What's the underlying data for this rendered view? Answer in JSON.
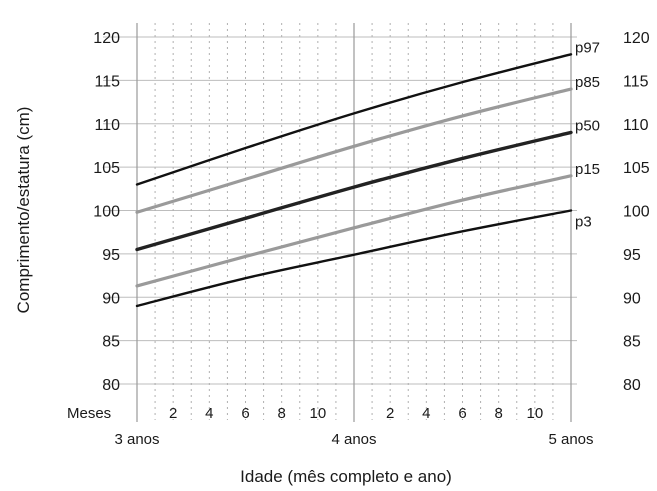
{
  "chart_data": {
    "type": "line",
    "title": "",
    "xlabel": "Idade (mês completo e ano)",
    "ylabel": "Comprimento/estatura (cm)",
    "ylim": [
      80,
      120
    ],
    "yticks": [
      80,
      85,
      90,
      95,
      100,
      105,
      110,
      115,
      120
    ],
    "xlim": [
      36,
      60
    ],
    "x_row_label": "Meses",
    "x_month_ticks": [
      {
        "month": 38,
        "label": "2"
      },
      {
        "month": 40,
        "label": "4"
      },
      {
        "month": 42,
        "label": "6"
      },
      {
        "month": 44,
        "label": "8"
      },
      {
        "month": 46,
        "label": "10"
      },
      {
        "month": 50,
        "label": "2"
      },
      {
        "month": 52,
        "label": "4"
      },
      {
        "month": 54,
        "label": "6"
      },
      {
        "month": 56,
        "label": "8"
      },
      {
        "month": 58,
        "label": "10"
      }
    ],
    "x_year_ticks": [
      {
        "month": 36,
        "label": "3 anos"
      },
      {
        "month": 48,
        "label": "4 anos"
      },
      {
        "month": 60,
        "label": "5 anos"
      }
    ],
    "grid": true,
    "x": [
      36,
      42,
      48,
      54,
      60
    ],
    "series": [
      {
        "name": "p97",
        "color": "#111111",
        "values": [
          103.0,
          107.2,
          111.2,
          114.8,
          118.0
        ]
      },
      {
        "name": "p85",
        "color": "#9a9a9a",
        "values": [
          99.8,
          103.6,
          107.4,
          110.9,
          114.0
        ]
      },
      {
        "name": "p50",
        "color": "#222222",
        "values": [
          95.5,
          99.1,
          102.7,
          106.0,
          109.0
        ]
      },
      {
        "name": "p15",
        "color": "#9a9a9a",
        "values": [
          91.3,
          94.7,
          98.0,
          101.2,
          104.0
        ]
      },
      {
        "name": "p3",
        "color": "#111111",
        "values": [
          89.0,
          92.2,
          94.9,
          97.6,
          100.0
        ]
      }
    ]
  }
}
